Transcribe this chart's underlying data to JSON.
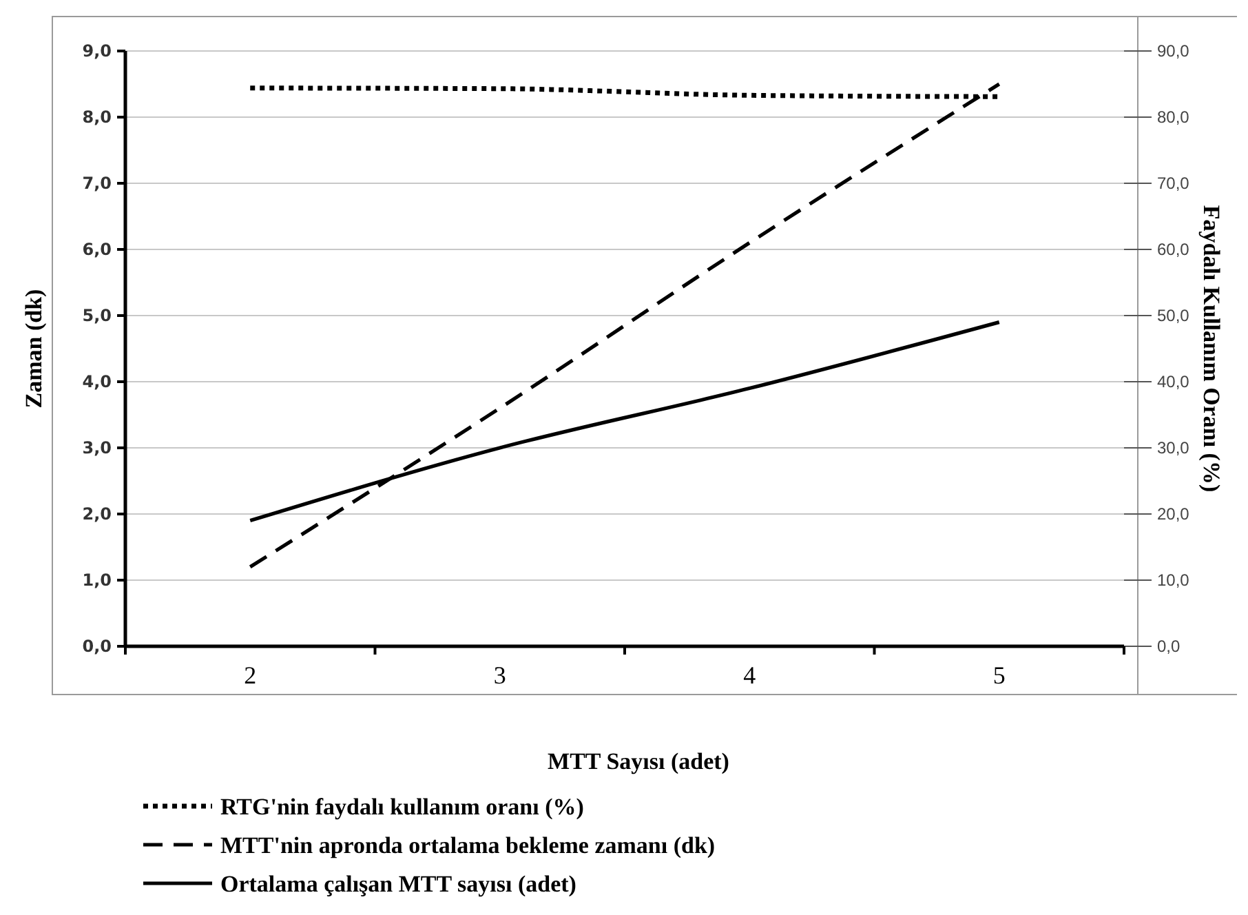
{
  "chart_data": {
    "type": "line",
    "categories": [
      "2",
      "3",
      "4",
      "5"
    ],
    "xlabel": "MTT Sayısı (adet)",
    "ylabel": "Zaman (dk)",
    "y2label": "Faydalı Kullanım Oranı (%)",
    "ylim": [
      0,
      9
    ],
    "yticks": [
      {
        "value": 0,
        "label": "0,0"
      },
      {
        "value": 1,
        "label": "1,0"
      },
      {
        "value": 2,
        "label": "2,0"
      },
      {
        "value": 3,
        "label": "3,0"
      },
      {
        "value": 4,
        "label": "4,0"
      },
      {
        "value": 5,
        "label": "5,0"
      },
      {
        "value": 6,
        "label": "6,0"
      },
      {
        "value": 7,
        "label": "7,0"
      },
      {
        "value": 8,
        "label": "8,0"
      },
      {
        "value": 9,
        "label": "9,0"
      }
    ],
    "y2lim": [
      0,
      90
    ],
    "y2ticks": [
      {
        "value": 0,
        "label": "0,0"
      },
      {
        "value": 10,
        "label": "10,0"
      },
      {
        "value": 20,
        "label": "20,0"
      },
      {
        "value": 30,
        "label": "30,0"
      },
      {
        "value": 40,
        "label": "40,0"
      },
      {
        "value": 50,
        "label": "50,0"
      },
      {
        "value": 60,
        "label": "60,0"
      },
      {
        "value": 70,
        "label": "70,0"
      },
      {
        "value": 80,
        "label": "80,0"
      },
      {
        "value": 90,
        "label": "90,0"
      }
    ],
    "grid": "y",
    "legend": "bottom",
    "marker": "none",
    "series": [
      {
        "name": "RTG'nin faydalı kullanım oranı (%)",
        "color": "#000000",
        "axis": "y2",
        "line_style": "dotted",
        "values": [
          84.4,
          84.3,
          83.3,
          83.1
        ]
      },
      {
        "name": "MTT'nin apronda ortalama bekleme zamanı (dk)",
        "color": "#000000",
        "line_style": "dashed",
        "values": [
          1.2,
          3.6,
          6.1,
          8.5
        ]
      },
      {
        "name": "Ortalama çalışan MTT sayısı (adet)",
        "color": "#000000",
        "line_style": "solid",
        "values": [
          1.9,
          3.0,
          3.9,
          4.9
        ]
      }
    ]
  }
}
